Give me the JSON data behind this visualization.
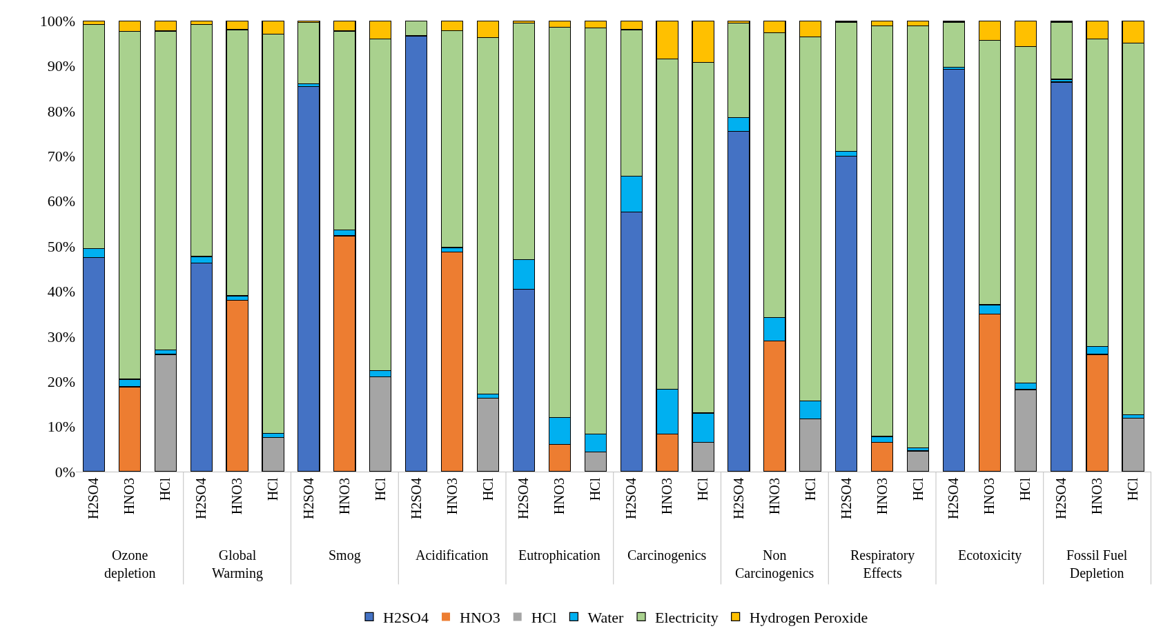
{
  "chart_data": {
    "type": "bar",
    "stacked": true,
    "categories": [
      "H2SO4",
      "HNO3",
      "HCl",
      "H2SO4",
      "HNO3",
      "HCl",
      "H2SO4",
      "HNO3",
      "HCl",
      "H2SO4",
      "HNO3",
      "HCl",
      "H2SO4",
      "HNO3",
      "HCl",
      "H2SO4",
      "HNO3",
      "HCl",
      "H2SO4",
      "HNO3",
      "HCl",
      "H2SO4",
      "HNO3",
      "HCl",
      "H2SO4",
      "HNO3",
      "HCl",
      "H2SO4",
      "HNO3",
      "HCl"
    ],
    "annotations": [
      "Ozone\ndepletion",
      "Global\nWarming",
      "Smog",
      "Acidification",
      "Eutrophication",
      "Carcinogenics",
      "Non\nCarcinogenics",
      "Respiratory\nEffects",
      "Ecotoxicity",
      "Fossil Fuel\nDepletion"
    ],
    "series": [
      {
        "name": "H2SO4",
        "color": "#4472c4",
        "values": [
          47.5,
          0,
          0,
          46.3,
          0,
          0,
          85.4,
          0,
          0,
          96.5,
          0,
          0,
          40.4,
          0,
          0,
          57.6,
          0,
          0,
          75.4,
          0,
          0,
          70,
          0,
          0,
          89.2,
          0,
          0,
          86.4,
          0,
          0
        ]
      },
      {
        "name": "HNO3",
        "color": "#ed7d31",
        "values": [
          0,
          18.8,
          0,
          0,
          38,
          0,
          0,
          52.3,
          0,
          0,
          48.7,
          0,
          0,
          6.1,
          0,
          0,
          8.3,
          0,
          0,
          29,
          0,
          0,
          6.5,
          0,
          0,
          35,
          0,
          0,
          26,
          0
        ]
      },
      {
        "name": "HCl",
        "color": "#a5a5a5",
        "values": [
          0,
          0,
          26,
          0,
          0,
          7.6,
          0,
          0,
          21,
          0,
          0,
          16.3,
          0,
          0,
          4.4,
          0,
          0,
          6.5,
          0,
          0,
          11.7,
          0,
          0,
          4.6,
          0,
          0,
          18.2,
          0,
          0,
          11.8
        ]
      },
      {
        "name": "Water",
        "color": "#00b0f0",
        "values": [
          2.0,
          1.7,
          1.0,
          1.4,
          1.0,
          0.9,
          0.6,
          1.3,
          1.4,
          0.2,
          1.0,
          0.9,
          6.6,
          5.9,
          3.9,
          7.9,
          10,
          6.5,
          3.1,
          5.2,
          4.0,
          1.0,
          1.3,
          0.7,
          0.5,
          2.0,
          1.4,
          0.6,
          1.7,
          0.8
        ]
      },
      {
        "name": "Electricity",
        "color": "#a9d18e",
        "values": [
          49.7,
          77.1,
          70.7,
          51.4,
          59.0,
          88.5,
          13.6,
          44.1,
          73.6,
          3.3,
          48.1,
          79.1,
          52.5,
          86.6,
          90.1,
          32.5,
          73.2,
          77.7,
          21.0,
          63.1,
          80.7,
          28.7,
          91.1,
          93.5,
          10.0,
          58.7,
          74.7,
          12.7,
          68.3,
          82.4
        ]
      },
      {
        "name": "Hydrogen Peroxide",
        "color": "#ffc000",
        "values": [
          0.8,
          2.4,
          2.3,
          0.9,
          2.0,
          3.0,
          0.4,
          2.3,
          4.0,
          0,
          2.2,
          3.7,
          0.5,
          1.4,
          1.6,
          2.0,
          8.5,
          9.3,
          0.5,
          2.7,
          3.6,
          0.3,
          1.1,
          1.2,
          0.3,
          4.3,
          5.7,
          0.3,
          4.0,
          5.0
        ]
      }
    ],
    "ylim": [
      0,
      100
    ],
    "yticks": [
      {
        "value": 0,
        "label": "0%"
      },
      {
        "value": 10,
        "label": "10%"
      },
      {
        "value": 20,
        "label": "20%"
      },
      {
        "value": 30,
        "label": "30%"
      },
      {
        "value": 40,
        "label": "40%"
      },
      {
        "value": 50,
        "label": "50%"
      },
      {
        "value": 60,
        "label": "60%"
      },
      {
        "value": 70,
        "label": "70%"
      },
      {
        "value": 80,
        "label": "80%"
      },
      {
        "value": 90,
        "label": "90%"
      },
      {
        "value": 100,
        "label": "100%"
      }
    ],
    "grid": false,
    "legend": "bottom"
  }
}
